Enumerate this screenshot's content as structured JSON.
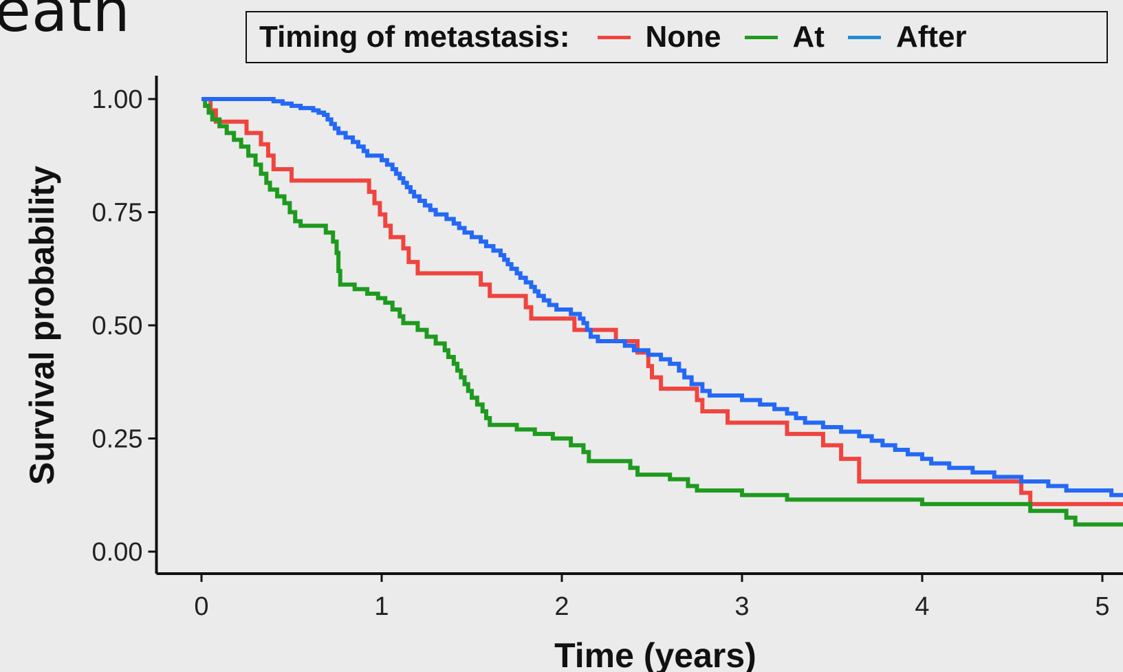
{
  "page": {
    "partial_title": "eath"
  },
  "chart_data": {
    "type": "line",
    "step": true,
    "title": "",
    "xlabel": "Time (years)",
    "ylabel": "Survival probability",
    "xlim": [
      -0.25,
      5.12
    ],
    "ylim": [
      -0.05,
      1.05
    ],
    "x_ticks": [
      0,
      1,
      2,
      3,
      4,
      5
    ],
    "y_ticks": [
      0.0,
      0.25,
      0.5,
      0.75,
      1.0
    ],
    "x_tick_labels": [
      "0",
      "1",
      "2",
      "3",
      "4",
      "5"
    ],
    "y_tick_labels": [
      "0.00",
      "0.25",
      "0.50",
      "0.75",
      "1.00"
    ],
    "grid": false,
    "legend": {
      "title": "Timing of metastasis:",
      "position": "top",
      "entries": [
        {
          "label": "None",
          "color": "#f0443f"
        },
        {
          "label": "At",
          "color": "#1e9a1e"
        },
        {
          "label": "After",
          "color": "#1f8fd0"
        }
      ]
    },
    "series": [
      {
        "name": "None",
        "color": "#f0443f",
        "points": [
          [
            0,
            1.0
          ],
          [
            0.05,
            0.975
          ],
          [
            0.08,
            0.95
          ],
          [
            0.25,
            0.925
          ],
          [
            0.33,
            0.9
          ],
          [
            0.37,
            0.875
          ],
          [
            0.4,
            0.845
          ],
          [
            0.5,
            0.82
          ],
          [
            0.93,
            0.795
          ],
          [
            0.96,
            0.77
          ],
          [
            0.99,
            0.745
          ],
          [
            1.02,
            0.72
          ],
          [
            1.05,
            0.695
          ],
          [
            1.12,
            0.67
          ],
          [
            1.15,
            0.64
          ],
          [
            1.2,
            0.615
          ],
          [
            1.55,
            0.59
          ],
          [
            1.6,
            0.565
          ],
          [
            1.8,
            0.54
          ],
          [
            1.83,
            0.515
          ],
          [
            2.07,
            0.49
          ],
          [
            2.3,
            0.465
          ],
          [
            2.42,
            0.44
          ],
          [
            2.48,
            0.41
          ],
          [
            2.5,
            0.385
          ],
          [
            2.55,
            0.36
          ],
          [
            2.75,
            0.335
          ],
          [
            2.78,
            0.31
          ],
          [
            2.92,
            0.285
          ],
          [
            3.25,
            0.26
          ],
          [
            3.45,
            0.235
          ],
          [
            3.55,
            0.205
          ],
          [
            3.65,
            0.155
          ],
          [
            4.55,
            0.13
          ],
          [
            4.6,
            0.105
          ],
          [
            5.12,
            0.105
          ]
        ]
      },
      {
        "name": "At",
        "color": "#1e9a1e",
        "points": [
          [
            0,
            1.0
          ],
          [
            0.02,
            0.985
          ],
          [
            0.04,
            0.97
          ],
          [
            0.06,
            0.955
          ],
          [
            0.1,
            0.94
          ],
          [
            0.14,
            0.925
          ],
          [
            0.18,
            0.91
          ],
          [
            0.22,
            0.895
          ],
          [
            0.26,
            0.875
          ],
          [
            0.3,
            0.855
          ],
          [
            0.33,
            0.835
          ],
          [
            0.36,
            0.815
          ],
          [
            0.38,
            0.8
          ],
          [
            0.42,
            0.785
          ],
          [
            0.46,
            0.77
          ],
          [
            0.49,
            0.75
          ],
          [
            0.52,
            0.73
          ],
          [
            0.55,
            0.72
          ],
          [
            0.69,
            0.705
          ],
          [
            0.73,
            0.685
          ],
          [
            0.75,
            0.66
          ],
          [
            0.76,
            0.62
          ],
          [
            0.77,
            0.59
          ],
          [
            0.85,
            0.58
          ],
          [
            0.92,
            0.57
          ],
          [
            0.98,
            0.56
          ],
          [
            1.02,
            0.55
          ],
          [
            1.06,
            0.535
          ],
          [
            1.1,
            0.52
          ],
          [
            1.12,
            0.505
          ],
          [
            1.2,
            0.49
          ],
          [
            1.25,
            0.475
          ],
          [
            1.3,
            0.46
          ],
          [
            1.35,
            0.445
          ],
          [
            1.37,
            0.43
          ],
          [
            1.4,
            0.415
          ],
          [
            1.42,
            0.4
          ],
          [
            1.44,
            0.385
          ],
          [
            1.46,
            0.37
          ],
          [
            1.48,
            0.355
          ],
          [
            1.5,
            0.34
          ],
          [
            1.53,
            0.325
          ],
          [
            1.56,
            0.31
          ],
          [
            1.58,
            0.295
          ],
          [
            1.6,
            0.28
          ],
          [
            1.75,
            0.27
          ],
          [
            1.85,
            0.26
          ],
          [
            1.95,
            0.25
          ],
          [
            2.05,
            0.235
          ],
          [
            2.12,
            0.22
          ],
          [
            2.15,
            0.2
          ],
          [
            2.38,
            0.185
          ],
          [
            2.42,
            0.17
          ],
          [
            2.6,
            0.16
          ],
          [
            2.7,
            0.145
          ],
          [
            2.75,
            0.135
          ],
          [
            3.0,
            0.125
          ],
          [
            3.25,
            0.115
          ],
          [
            4.0,
            0.105
          ],
          [
            4.6,
            0.09
          ],
          [
            4.8,
            0.075
          ],
          [
            4.85,
            0.06
          ],
          [
            5.12,
            0.06
          ]
        ]
      },
      {
        "name": "After",
        "color": "#2468f5",
        "points": [
          [
            0,
            1.0
          ],
          [
            0.4,
            0.995
          ],
          [
            0.45,
            0.99
          ],
          [
            0.5,
            0.985
          ],
          [
            0.55,
            0.98
          ],
          [
            0.62,
            0.975
          ],
          [
            0.65,
            0.97
          ],
          [
            0.68,
            0.965
          ],
          [
            0.7,
            0.955
          ],
          [
            0.72,
            0.945
          ],
          [
            0.74,
            0.935
          ],
          [
            0.76,
            0.925
          ],
          [
            0.8,
            0.915
          ],
          [
            0.84,
            0.905
          ],
          [
            0.87,
            0.895
          ],
          [
            0.9,
            0.885
          ],
          [
            0.92,
            0.875
          ],
          [
            1.0,
            0.865
          ],
          [
            1.03,
            0.855
          ],
          [
            1.06,
            0.845
          ],
          [
            1.08,
            0.835
          ],
          [
            1.1,
            0.825
          ],
          [
            1.12,
            0.815
          ],
          [
            1.14,
            0.805
          ],
          [
            1.16,
            0.795
          ],
          [
            1.18,
            0.785
          ],
          [
            1.21,
            0.775
          ],
          [
            1.24,
            0.765
          ],
          [
            1.27,
            0.755
          ],
          [
            1.3,
            0.745
          ],
          [
            1.36,
            0.735
          ],
          [
            1.4,
            0.725
          ],
          [
            1.43,
            0.715
          ],
          [
            1.46,
            0.705
          ],
          [
            1.5,
            0.695
          ],
          [
            1.55,
            0.685
          ],
          [
            1.58,
            0.675
          ],
          [
            1.62,
            0.665
          ],
          [
            1.66,
            0.655
          ],
          [
            1.68,
            0.645
          ],
          [
            1.7,
            0.635
          ],
          [
            1.72,
            0.625
          ],
          [
            1.75,
            0.615
          ],
          [
            1.77,
            0.605
          ],
          [
            1.8,
            0.595
          ],
          [
            1.83,
            0.585
          ],
          [
            1.85,
            0.575
          ],
          [
            1.87,
            0.565
          ],
          [
            1.9,
            0.555
          ],
          [
            1.93,
            0.545
          ],
          [
            1.97,
            0.535
          ],
          [
            2.05,
            0.525
          ],
          [
            2.1,
            0.515
          ],
          [
            2.12,
            0.505
          ],
          [
            2.14,
            0.49
          ],
          [
            2.16,
            0.475
          ],
          [
            2.2,
            0.465
          ],
          [
            2.35,
            0.455
          ],
          [
            2.4,
            0.445
          ],
          [
            2.48,
            0.435
          ],
          [
            2.55,
            0.425
          ],
          [
            2.6,
            0.415
          ],
          [
            2.65,
            0.4
          ],
          [
            2.68,
            0.385
          ],
          [
            2.72,
            0.37
          ],
          [
            2.78,
            0.355
          ],
          [
            2.82,
            0.345
          ],
          [
            3.0,
            0.335
          ],
          [
            3.1,
            0.325
          ],
          [
            3.18,
            0.315
          ],
          [
            3.25,
            0.305
          ],
          [
            3.3,
            0.295
          ],
          [
            3.35,
            0.285
          ],
          [
            3.45,
            0.275
          ],
          [
            3.55,
            0.265
          ],
          [
            3.65,
            0.255
          ],
          [
            3.72,
            0.245
          ],
          [
            3.78,
            0.235
          ],
          [
            3.85,
            0.225
          ],
          [
            3.92,
            0.215
          ],
          [
            4.0,
            0.205
          ],
          [
            4.05,
            0.195
          ],
          [
            4.15,
            0.185
          ],
          [
            4.28,
            0.175
          ],
          [
            4.4,
            0.165
          ],
          [
            4.55,
            0.155
          ],
          [
            4.7,
            0.145
          ],
          [
            4.8,
            0.135
          ],
          [
            5.05,
            0.125
          ],
          [
            5.12,
            0.125
          ]
        ]
      }
    ]
  }
}
